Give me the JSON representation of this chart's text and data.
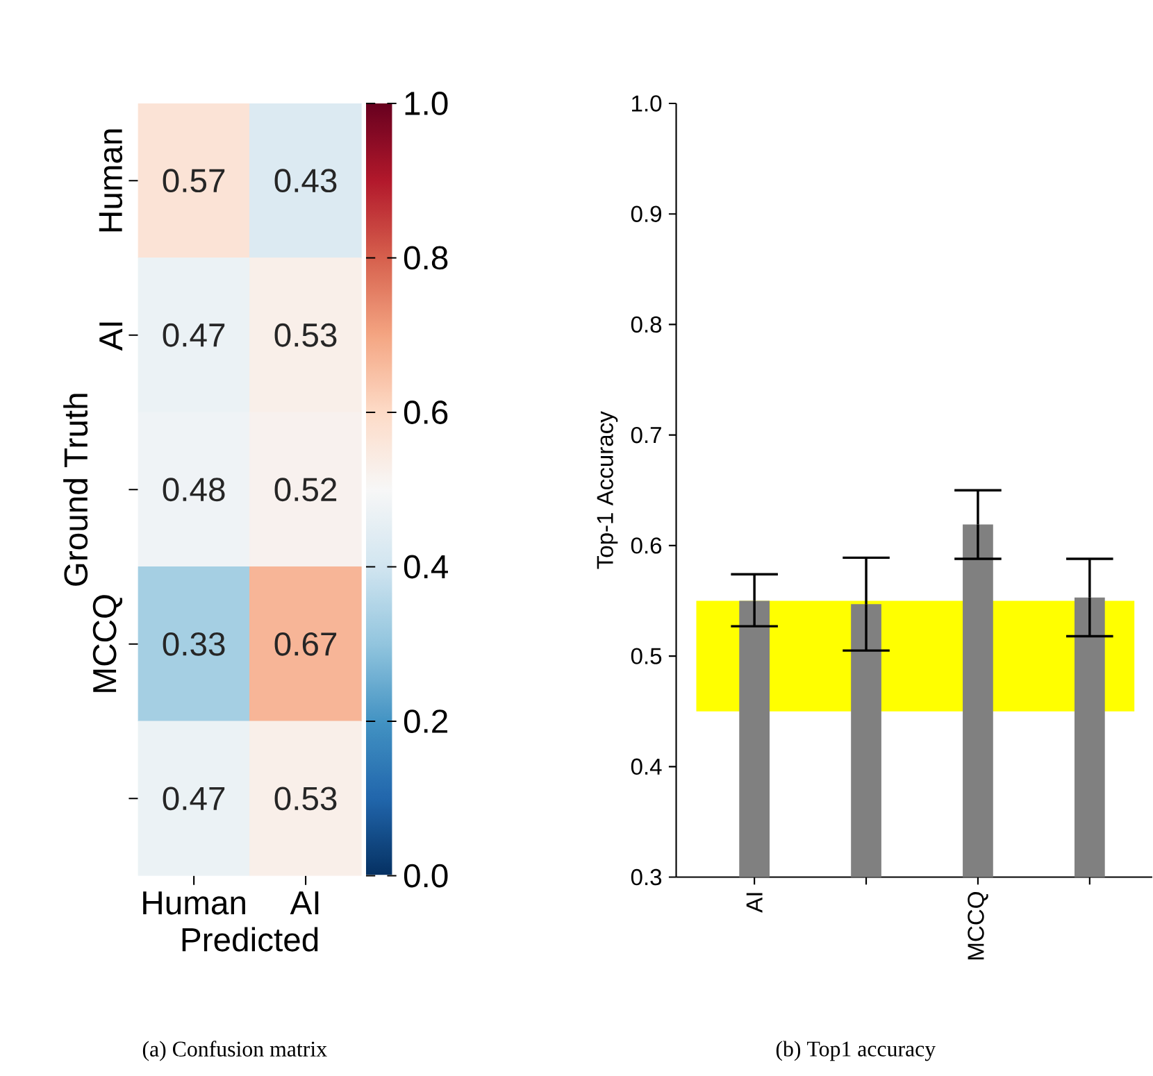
{
  "chart_data": [
    {
      "type": "heatmap",
      "categories": [
        "Human",
        "AI"
      ],
      "y_categories": [
        "Human",
        "AI",
        null,
        "MCCQ",
        null
      ],
      "cells": [
        [
          0.57,
          0.43
        ],
        [
          0.47,
          0.53
        ],
        [
          0.48,
          0.52
        ],
        [
          0.33,
          0.67
        ],
        [
          0.47,
          0.53
        ]
      ],
      "cell_labels": [
        [
          "0.57",
          "0.43"
        ],
        [
          "0.47",
          "0.53"
        ],
        [
          "0.48",
          "0.52"
        ],
        [
          "0.33",
          "0.67"
        ],
        [
          "0.47",
          "0.53"
        ]
      ],
      "xlabel": "Predicted",
      "ylabel": "Ground Truth",
      "clim": [
        0,
        1
      ],
      "cticks": [
        {
          "value": 0,
          "label": "0.0"
        },
        {
          "value": 0.2,
          "label": "0.2"
        },
        {
          "value": 0.4,
          "label": "0.4"
        },
        {
          "value": 0.6,
          "label": "0.6"
        },
        {
          "value": 0.8,
          "label": "0.8"
        },
        {
          "value": 1,
          "label": "1.0"
        }
      ],
      "annotations": [
        "(a) Confusion matrix"
      ]
    },
    {
      "type": "bar",
      "categories": [
        "AI",
        null,
        "MCCQ",
        null
      ],
      "values": [
        0.55,
        0.547,
        0.619,
        0.553
      ],
      "errors": [
        [
          0.527,
          0.574
        ],
        [
          0.505,
          0.589
        ],
        [
          0.588,
          0.65
        ],
        [
          0.518,
          0.588
        ]
      ],
      "color": "#808080",
      "ylim": [
        0.3,
        1.0
      ],
      "yticks": [
        0.3,
        0.4,
        0.5,
        0.6,
        0.7,
        0.8,
        0.9,
        {
          "value": 1.0,
          "label": "1.0"
        }
      ],
      "ylabel": "Top-1 Accuracy",
      "bands": [
        {
          "axis": "y",
          "from": 0.45,
          "to": 0.55,
          "color": "#ffff00"
        }
      ],
      "annotations": [
        "(b) Top1 accuracy"
      ]
    }
  ]
}
